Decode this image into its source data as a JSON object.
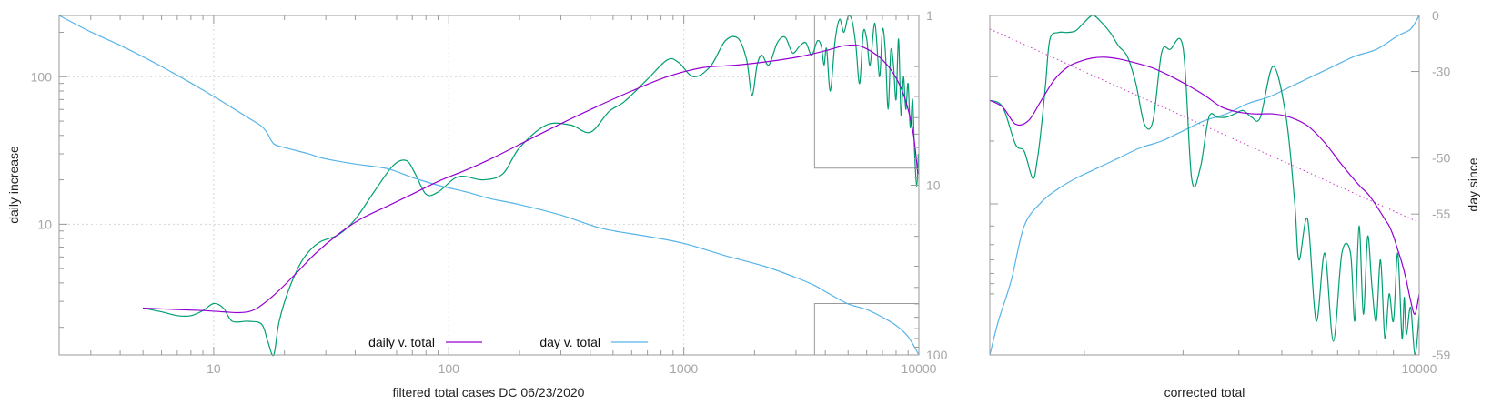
{
  "colors": {
    "daily": "#9400d3",
    "raw": "#009e73",
    "day": "#56b4e9",
    "fit": "#cc33cc",
    "frame": "#9a9a9a"
  },
  "chart_data": [
    {
      "type": "line",
      "name": "left-panel",
      "title": "",
      "xlabel": "filtered total cases DC 06/23/2020",
      "ylabel": "daily increase",
      "y2label": "",
      "xscale": "log",
      "yscale": "log",
      "xlim": [
        2.2,
        10000
      ],
      "ylim": [
        1.3,
        260
      ],
      "y2lim": [
        1,
        100
      ],
      "y2reversed": true,
      "xticks": [
        10,
        100,
        1000,
        10000
      ],
      "xtick_labels": [
        "10",
        "100",
        "1000",
        "10000"
      ],
      "yticks": [
        10,
        100
      ],
      "ytick_labels": [
        "10",
        "100"
      ],
      "y2ticks": [
        1,
        10,
        100
      ],
      "y2tick_labels": [
        "1",
        "10",
        "100"
      ],
      "grid": true,
      "legend": {
        "placement": "bottom-center",
        "entries": [
          "daily v. total",
          "day v. total"
        ]
      },
      "inset_boxes": [
        {
          "x": [
            3600,
            10000
          ],
          "y": [
            24,
            260
          ]
        },
        {
          "x": [
            3600,
            10000
          ],
          "y": [
            1.3,
            2.9
          ]
        }
      ],
      "series": [
        {
          "name": "daily v. total",
          "axis": "y",
          "color_key": "daily",
          "x": [
            5,
            7,
            9,
            11,
            13,
            15,
            18,
            22,
            27,
            34,
            42,
            55,
            70,
            90,
            120,
            160,
            220,
            300,
            420,
            600,
            850,
            1200,
            1700,
            2400,
            3200,
            4000,
            4800,
            5500,
            6200,
            7000,
            7800,
            8500,
            9000,
            9500,
            9900
          ],
          "y": [
            2.7,
            2.64,
            2.6,
            2.55,
            2.52,
            2.65,
            3.3,
            4.5,
            6.3,
            8.6,
            10.8,
            13.3,
            16,
            19.5,
            23.5,
            29,
            37.5,
            48,
            62,
            80,
            100,
            115,
            120,
            128,
            138,
            150,
            162,
            163,
            150,
            130,
            105,
            80,
            60,
            40,
            22
          ]
        },
        {
          "name": "raw daily",
          "axis": "y",
          "color_key": "raw",
          "x": [
            5,
            6,
            7,
            8,
            9,
            10,
            11,
            12,
            14,
            16,
            17,
            18,
            19,
            21,
            24,
            28,
            34,
            40,
            48,
            58,
            66,
            72,
            80,
            90,
            110,
            140,
            170,
            200,
            260,
            330,
            400,
            480,
            560,
            700,
            850,
            950,
            1100,
            1300,
            1500,
            1700,
            1850,
            1950,
            2050,
            2150,
            2300,
            2500,
            2700,
            2900,
            3100,
            3300,
            3500,
            3700,
            3850,
            3950,
            4050,
            4200,
            4400,
            4600,
            4800,
            5000,
            5200,
            5400,
            5600,
            5800,
            6000,
            6200,
            6500,
            6800,
            7000,
            7200,
            7400,
            7600,
            7800,
            8000,
            8200,
            8400,
            8600,
            8800,
            9000,
            9200,
            9400,
            9600,
            9800,
            9950
          ],
          "y": [
            2.7,
            2.55,
            2.4,
            2.4,
            2.6,
            2.9,
            2.7,
            2.2,
            2.2,
            2.1,
            1.6,
            1.3,
            2.2,
            3.7,
            5.8,
            7.5,
            8.5,
            10.8,
            16.5,
            25,
            27,
            22,
            16,
            16.5,
            21,
            20,
            22,
            33,
            47,
            47,
            42,
            58,
            68,
            96,
            130,
            125,
            100,
            118,
            175,
            182,
            130,
            75,
            120,
            140,
            120,
            170,
            185,
            145,
            160,
            170,
            140,
            175,
            160,
            120,
            155,
            80,
            175,
            245,
            200,
            255,
            240,
            160,
            90,
            200,
            180,
            120,
            230,
            100,
            210,
            150,
            60,
            150,
            120,
            70,
            180,
            55,
            100,
            60,
            90,
            45,
            70,
            30,
            18,
            30
          ]
        },
        {
          "name": "day v. total",
          "axis": "y2",
          "color_key": "day",
          "x": [
            2.2,
            3,
            4,
            5,
            6,
            7,
            8,
            9,
            10,
            12,
            14,
            16,
            17,
            18,
            20,
            25,
            30,
            40,
            55,
            70,
            90,
            120,
            150,
            200,
            300,
            450,
            700,
            1000,
            1500,
            2200,
            3000,
            3600,
            4200,
            5000,
            6000,
            7000,
            8000,
            9000,
            10000
          ],
          "y": [
            1,
            1.25,
            1.5,
            1.75,
            2,
            2.25,
            2.5,
            2.75,
            3,
            3.5,
            4,
            4.5,
            5,
            5.7,
            6,
            6.5,
            7,
            7.5,
            8,
            9,
            10,
            11,
            12,
            13,
            15,
            18,
            20,
            22,
            26,
            30,
            35,
            39,
            44,
            50,
            54,
            60,
            67,
            78,
            100
          ]
        }
      ]
    },
    {
      "type": "line",
      "name": "right-panel",
      "title": "",
      "xlabel": "corrected total",
      "ylabel": "",
      "y2label": "day since",
      "xtick_labels": [
        "10000"
      ],
      "y2tick_labels": [
        "0",
        "-30",
        "-50",
        "-55",
        "-59"
      ],
      "xlim": [
        0,
        1
      ],
      "ylim": [
        0,
        1
      ],
      "series": [
        {
          "name": "daily smooth",
          "color_key": "daily",
          "x": [
            0,
            0.03,
            0.06,
            0.09,
            0.12,
            0.15,
            0.18,
            0.21,
            0.24,
            0.27,
            0.3,
            0.34,
            0.38,
            0.42,
            0.46,
            0.5,
            0.54,
            0.58,
            0.62,
            0.66,
            0.7,
            0.74,
            0.78,
            0.82,
            0.86,
            0.88,
            0.9,
            0.92,
            0.93,
            0.94,
            0.95,
            0.96,
            0.97,
            0.98,
            0.99,
            1
          ],
          "y": [
            0.25,
            0.27,
            0.32,
            0.31,
            0.25,
            0.19,
            0.153,
            0.135,
            0.125,
            0.123,
            0.128,
            0.14,
            0.155,
            0.178,
            0.205,
            0.235,
            0.27,
            0.285,
            0.29,
            0.29,
            0.3,
            0.325,
            0.375,
            0.44,
            0.5,
            0.525,
            0.56,
            0.6,
            0.62,
            0.65,
            0.69,
            0.73,
            0.78,
            0.84,
            0.88,
            0.82
          ]
        },
        {
          "name": "raw daily",
          "color_key": "raw",
          "x": [
            0,
            0.03,
            0.06,
            0.08,
            0.1,
            0.11,
            0.12,
            0.13,
            0.14,
            0.16,
            0.18,
            0.2,
            0.22,
            0.24,
            0.26,
            0.28,
            0.3,
            0.32,
            0.34,
            0.36,
            0.38,
            0.4,
            0.42,
            0.45,
            0.47,
            0.49,
            0.51,
            0.53,
            0.55,
            0.57,
            0.59,
            0.61,
            0.63,
            0.66,
            0.69,
            0.71,
            0.72,
            0.74,
            0.76,
            0.78,
            0.8,
            0.82,
            0.84,
            0.85,
            0.86,
            0.87,
            0.88,
            0.89,
            0.9,
            0.91,
            0.92,
            0.93,
            0.94,
            0.95,
            0.96,
            0.965,
            0.97,
            0.98,
            0.99,
            1
          ],
          "y": [
            0.25,
            0.27,
            0.38,
            0.4,
            0.48,
            0.43,
            0.33,
            0.2,
            0.07,
            0.05,
            0.05,
            0.045,
            0.02,
            0.0,
            0.02,
            0.05,
            0.09,
            0.12,
            0.2,
            0.32,
            0.31,
            0.11,
            0.1,
            0.095,
            0.48,
            0.45,
            0.3,
            0.3,
            0.3,
            0.29,
            0.28,
            0.3,
            0.3,
            0.15,
            0.3,
            0.55,
            0.72,
            0.6,
            0.9,
            0.7,
            0.96,
            0.7,
            0.7,
            0.9,
            0.62,
            0.88,
            0.65,
            0.8,
            0.9,
            0.72,
            0.95,
            0.82,
            0.9,
            0.7,
            0.95,
            0.83,
            0.94,
            0.86,
            1.0,
            0.88
          ]
        },
        {
          "name": "day since",
          "color_key": "day",
          "x": [
            0,
            0.02,
            0.05,
            0.08,
            0.12,
            0.16,
            0.2,
            0.25,
            0.3,
            0.35,
            0.4,
            0.45,
            0.5,
            0.55,
            0.6,
            0.65,
            0.7,
            0.75,
            0.8,
            0.85,
            0.9,
            0.95,
            0.98,
            1
          ],
          "y": [
            1.0,
            0.9,
            0.78,
            0.62,
            0.55,
            0.51,
            0.48,
            0.45,
            0.42,
            0.39,
            0.37,
            0.34,
            0.31,
            0.29,
            0.26,
            0.24,
            0.21,
            0.18,
            0.15,
            0.12,
            0.1,
            0.06,
            0.04,
            0.0
          ]
        },
        {
          "name": "fit line",
          "color_key": "fit",
          "dashed": true,
          "x": [
            0,
            1
          ],
          "y": [
            0.04,
            0.61
          ]
        }
      ]
    }
  ]
}
